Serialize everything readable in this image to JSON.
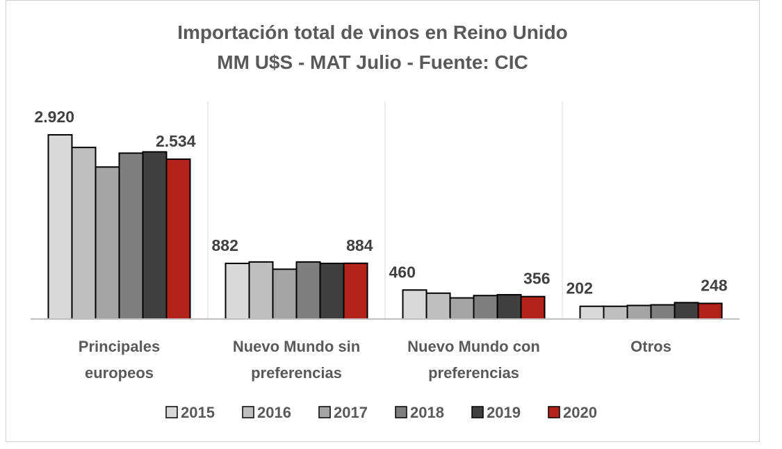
{
  "chart_data": {
    "type": "bar",
    "title": [
      "Importación total de vinos en Reino Unido",
      "MM U$S - MAT Julio - Fuente: CIC"
    ],
    "categories": [
      [
        "Principales",
        "europeos"
      ],
      [
        "Nuevo Mundo sin",
        "preferencias"
      ],
      [
        "Nuevo Mundo con",
        "preferencias"
      ],
      [
        "Otros"
      ]
    ],
    "series": [
      {
        "name": "2015",
        "color": "#d9d9d9",
        "values": [
          2920,
          882,
          460,
          202
        ]
      },
      {
        "name": "2016",
        "color": "#bfbfbf",
        "values": [
          2720,
          905,
          410,
          202
        ]
      },
      {
        "name": "2017",
        "color": "#a5a5a5",
        "values": [
          2410,
          790,
          335,
          215
        ]
      },
      {
        "name": "2018",
        "color": "#7f7f7f",
        "values": [
          2630,
          905,
          372,
          225
        ]
      },
      {
        "name": "2019",
        "color": "#404040",
        "values": [
          2650,
          882,
          385,
          260
        ]
      },
      {
        "name": "2020",
        "color": "#b3231a",
        "values": [
          2534,
          884,
          356,
          248
        ]
      }
    ],
    "data_labels": [
      {
        "category": 0,
        "series": 0,
        "text": "2.920"
      },
      {
        "category": 0,
        "series": 5,
        "text": "2.534"
      },
      {
        "category": 1,
        "series": 0,
        "text": "882"
      },
      {
        "category": 1,
        "series": 5,
        "text": "884"
      },
      {
        "category": 2,
        "series": 0,
        "text": "460"
      },
      {
        "category": 2,
        "series": 5,
        "text": "356"
      },
      {
        "category": 3,
        "series": 0,
        "text": "202"
      },
      {
        "category": 3,
        "series": 5,
        "text": "248"
      }
    ],
    "ylim": [
      0,
      3000
    ],
    "xlabel": "",
    "ylabel": "",
    "grid": false,
    "legend_position": "bottom"
  }
}
